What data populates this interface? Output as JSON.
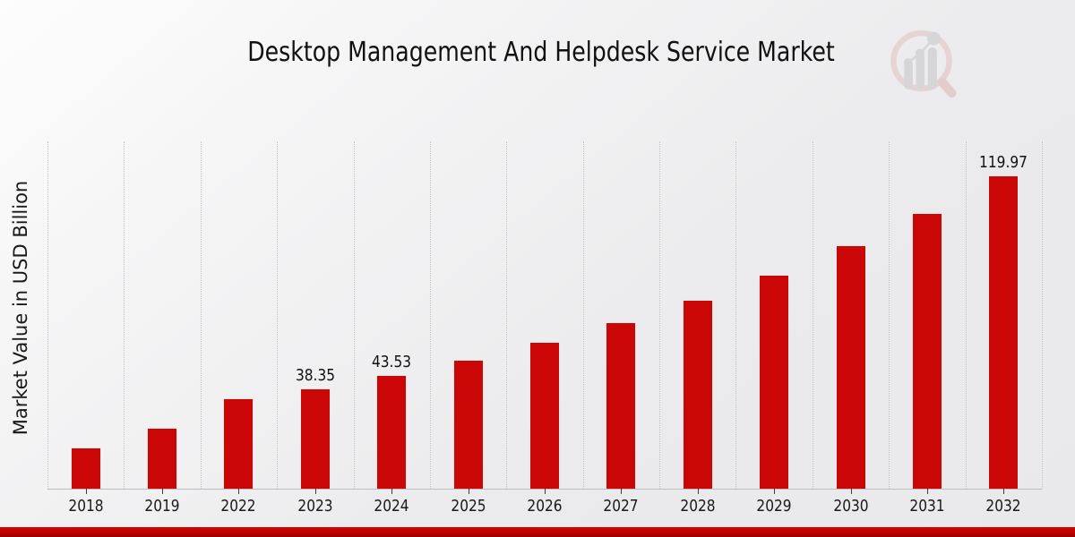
{
  "header": {
    "title": "Desktop Management And Helpdesk Service Market"
  },
  "icons": {
    "logo": "magnifier-bar-chart-logo"
  },
  "chart_data": {
    "type": "bar",
    "title": "Desktop Management And Helpdesk Service Market",
    "xlabel": "",
    "ylabel": "Market Value in USD Billion",
    "categories": [
      "2018",
      "2019",
      "2022",
      "2023",
      "2024",
      "2025",
      "2026",
      "2027",
      "2028",
      "2029",
      "2030",
      "2031",
      "2032"
    ],
    "values": [
      15.9,
      23.2,
      34.5,
      38.35,
      43.53,
      49.4,
      56.1,
      63.7,
      72.3,
      82.0,
      93.1,
      105.7,
      119.97
    ],
    "value_labels": {
      "2023": "38.35",
      "2024": "43.53",
      "2032": "119.97"
    },
    "bar_color": "#cb0606",
    "grid": "vertical-dotted",
    "legend": "none",
    "ylim": [
      0,
      133
    ],
    "yaxis_ticks_shown": false
  },
  "footer": {
    "accent_bar_color": "#c00101"
  }
}
